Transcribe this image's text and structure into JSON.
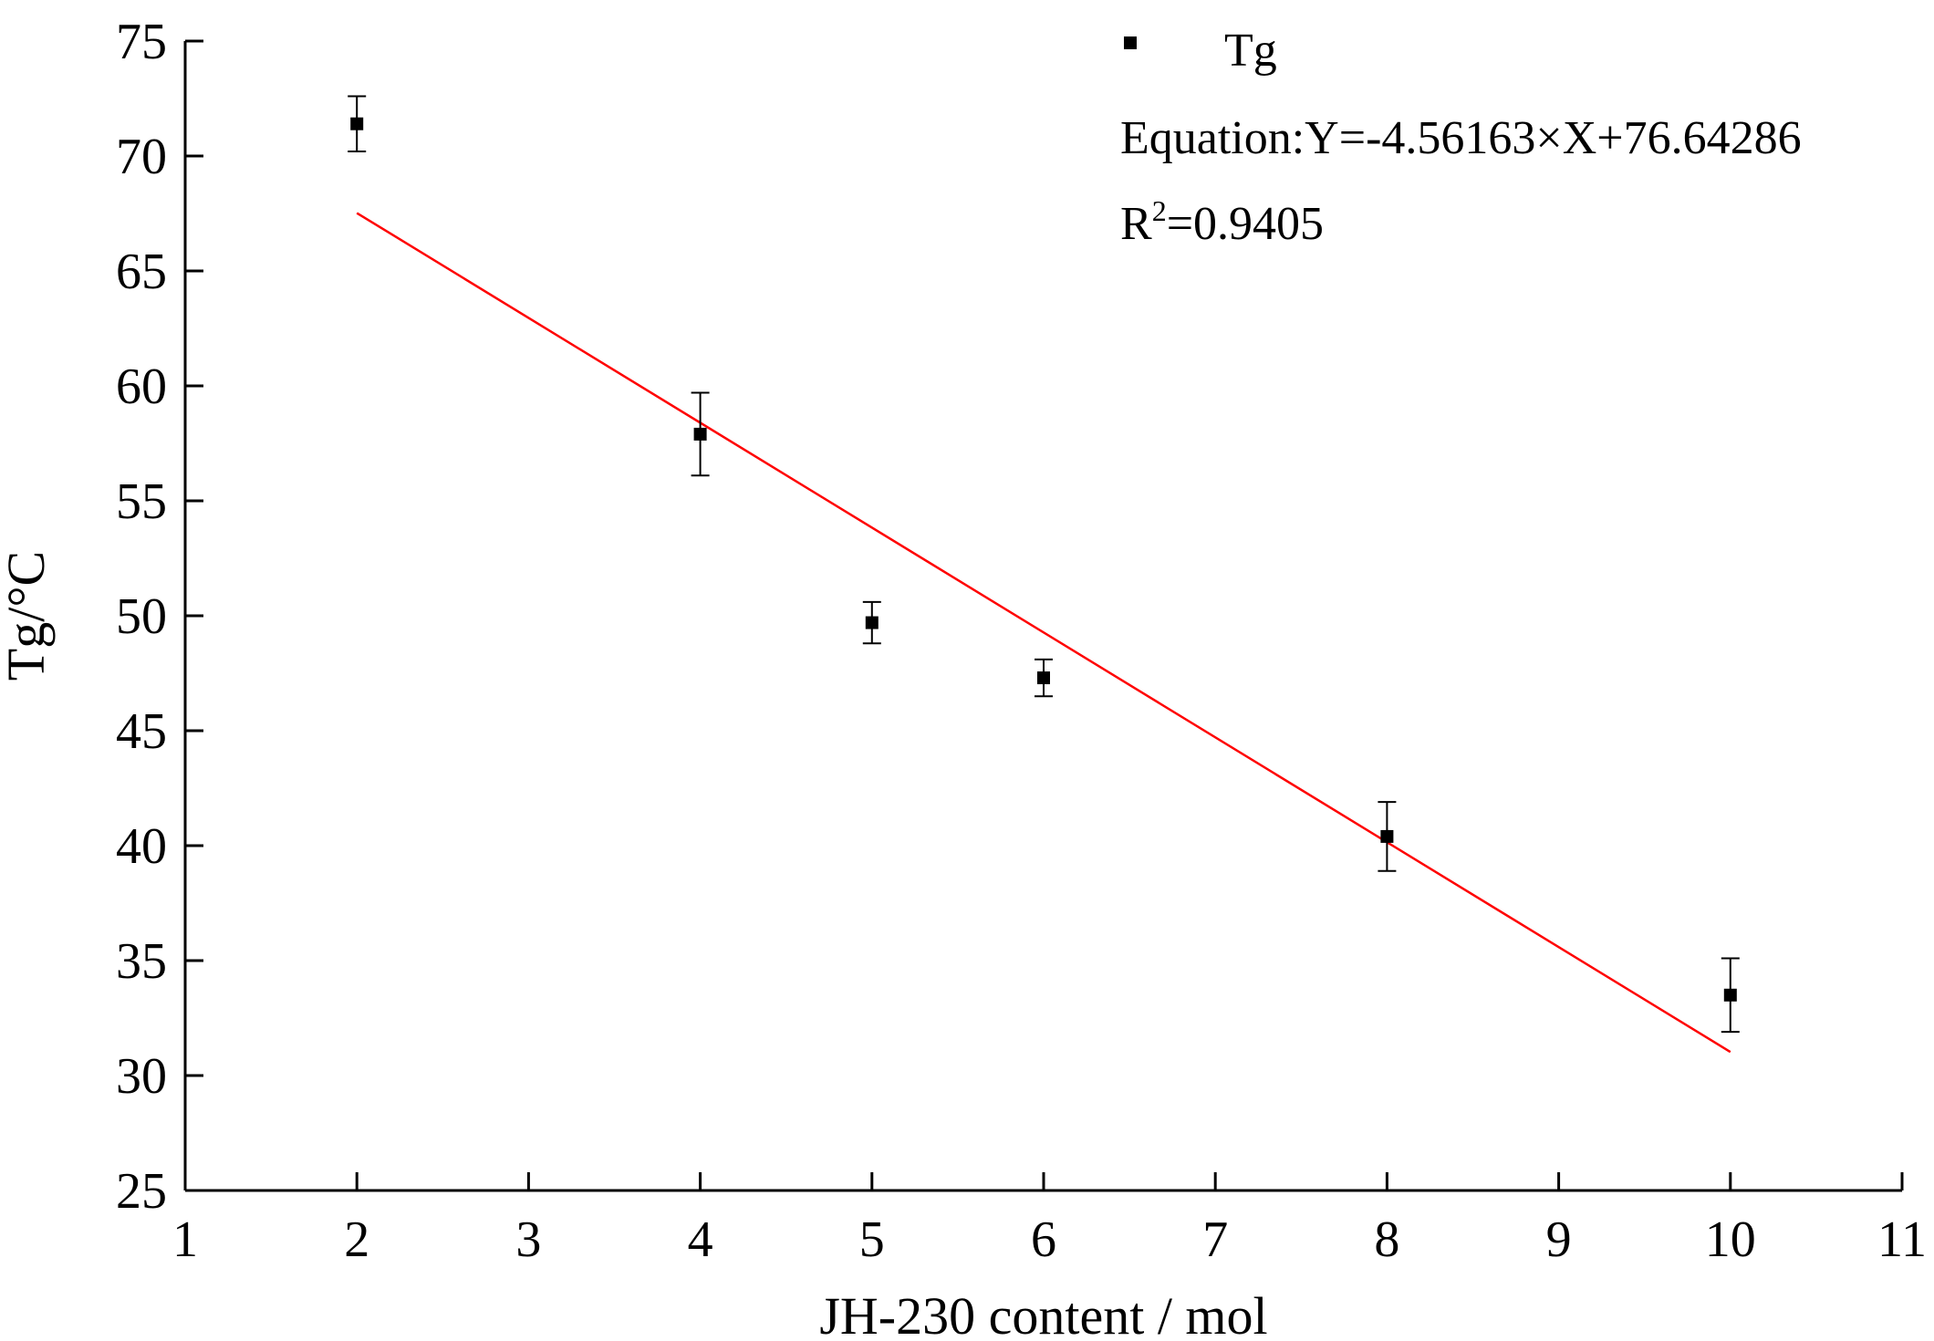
{
  "chart_data": {
    "type": "scatter",
    "xlabel": "JH-230 content / mol",
    "ylabel": "Tg/°C",
    "xlim": [
      1,
      11
    ],
    "ylim": [
      25,
      75
    ],
    "xticks": [
      1,
      2,
      3,
      4,
      5,
      6,
      7,
      8,
      9,
      10,
      11
    ],
    "yticks": [
      25,
      30,
      35,
      40,
      45,
      50,
      55,
      60,
      65,
      70,
      75
    ],
    "grid": false,
    "legend_position": "top-right",
    "series": [
      {
        "name": "Tg",
        "marker": "square",
        "color": "#000000",
        "x": [
          2,
          4,
          5,
          6,
          8,
          10
        ],
        "y": [
          71.4,
          57.9,
          49.7,
          47.3,
          40.4,
          33.5
        ],
        "error": [
          1.2,
          1.8,
          0.9,
          0.8,
          1.5,
          1.6
        ]
      }
    ],
    "fit": {
      "color": "#ff0000",
      "slope": -4.56163,
      "intercept": 76.64286,
      "x_range": [
        2,
        10
      ]
    },
    "annotations": {
      "equation_prefix": "Equation:Y=-4.56163",
      "times_symbol": "×",
      "equation_x": "X",
      "plus_symbol": "+",
      "equation_suffix": "76.64286",
      "r_label": "R",
      "r_superscript": "2",
      "r_value": "=0.9405"
    }
  }
}
